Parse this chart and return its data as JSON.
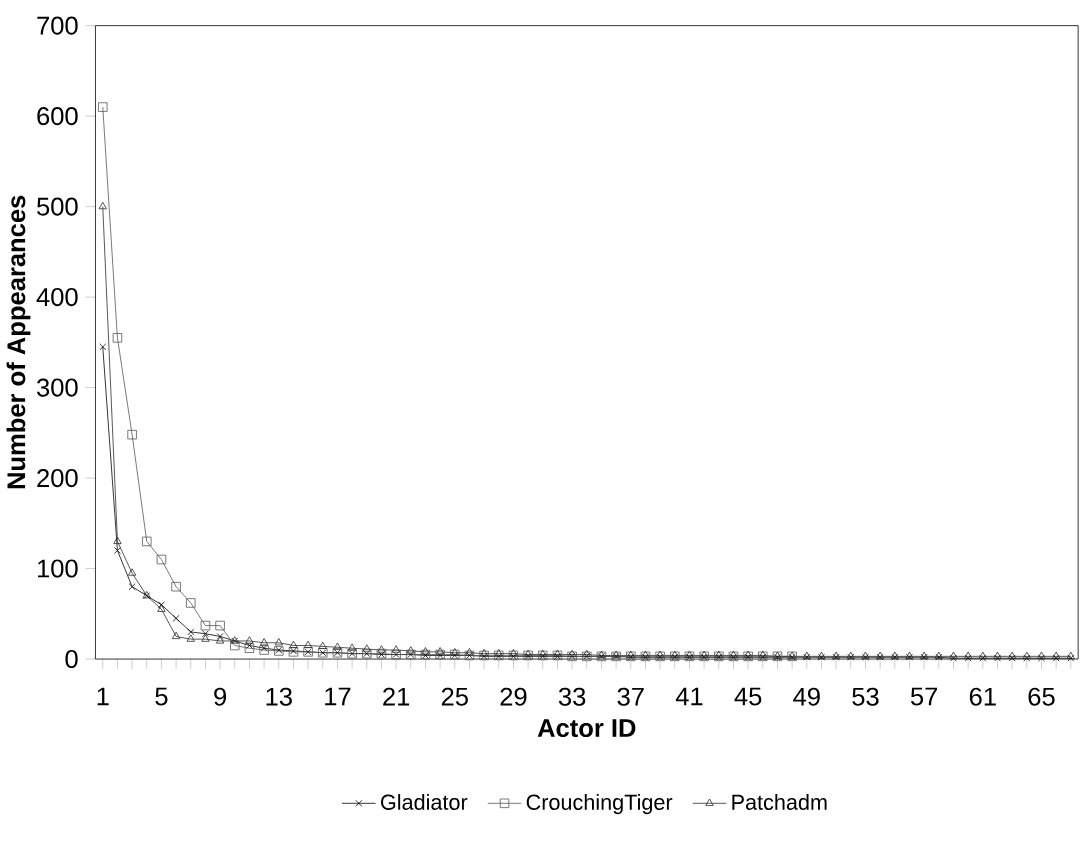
{
  "chart_data": {
    "type": "line",
    "xlabel": "Actor ID",
    "ylabel": "Number of Appearances",
    "categories": [
      "1",
      null,
      null,
      null,
      "5",
      null,
      null,
      null,
      "9",
      null,
      null,
      null,
      "13",
      null,
      null,
      null,
      "17",
      null,
      null,
      null,
      "21",
      null,
      null,
      null,
      "25",
      null,
      null,
      null,
      "29",
      null,
      null,
      null,
      "33",
      null,
      null,
      null,
      "37",
      null,
      null,
      null,
      "41",
      null,
      null,
      null,
      "45",
      null,
      null,
      null,
      "49",
      null,
      null,
      null,
      "53",
      null,
      null,
      null,
      "57",
      null,
      null,
      null,
      "61",
      null,
      null,
      null,
      "65",
      null,
      null
    ],
    "series": [
      {
        "name": "Gladiator",
        "color": "#000000",
        "marker": "cross",
        "values": [
          345,
          120,
          80,
          70,
          60,
          45,
          30,
          28,
          25,
          20,
          15,
          12,
          10,
          9,
          8,
          7,
          7,
          6,
          6,
          5,
          5,
          5,
          4,
          4,
          4,
          4,
          3,
          3,
          3,
          3,
          3,
          3,
          3,
          3,
          3,
          3,
          2,
          2,
          2,
          2,
          2,
          2,
          2,
          2,
          2,
          2,
          2,
          2,
          2,
          2,
          2,
          2,
          2,
          2,
          2,
          2,
          2,
          2,
          1,
          1,
          1,
          1,
          1,
          1,
          1,
          1,
          1
        ]
      },
      {
        "name": "CrouchingTiger",
        "color": "#555555",
        "marker": "square",
        "values": [
          610,
          355,
          248,
          130,
          110,
          80,
          62,
          37,
          37,
          15,
          12,
          10,
          9,
          8,
          8,
          7,
          7,
          6,
          6,
          6,
          5,
          5,
          5,
          5,
          5,
          4,
          4,
          4,
          4,
          4,
          4,
          4,
          3,
          3,
          3,
          3,
          3,
          3,
          3,
          3,
          3,
          3,
          3,
          3,
          3,
          3,
          3,
          3,
          null,
          null,
          null,
          null,
          null,
          null,
          null,
          null,
          null,
          null,
          null,
          null,
          null,
          null,
          null,
          null,
          null,
          null,
          null
        ]
      },
      {
        "name": "Patchadm",
        "color": "#2b2b2b",
        "marker": "triangle",
        "values": [
          500,
          130,
          95,
          70,
          55,
          25,
          22,
          22,
          20,
          20,
          20,
          18,
          18,
          15,
          15,
          14,
          13,
          12,
          11,
          10,
          10,
          9,
          8,
          8,
          7,
          7,
          6,
          6,
          6,
          5,
          5,
          5,
          5,
          5,
          4,
          4,
          4,
          4,
          4,
          4,
          4,
          4,
          4,
          4,
          4,
          4,
          3,
          3,
          3,
          3,
          3,
          3,
          3,
          3,
          3,
          3,
          3,
          3,
          3,
          3,
          3,
          3,
          3,
          3,
          3,
          3,
          3
        ]
      }
    ],
    "ylim": [
      0,
      700
    ],
    "yticks": [
      0,
      100,
      200,
      300,
      400,
      500,
      600,
      700
    ],
    "grid": false,
    "legend": "bottom",
    "line_style": "solid"
  }
}
